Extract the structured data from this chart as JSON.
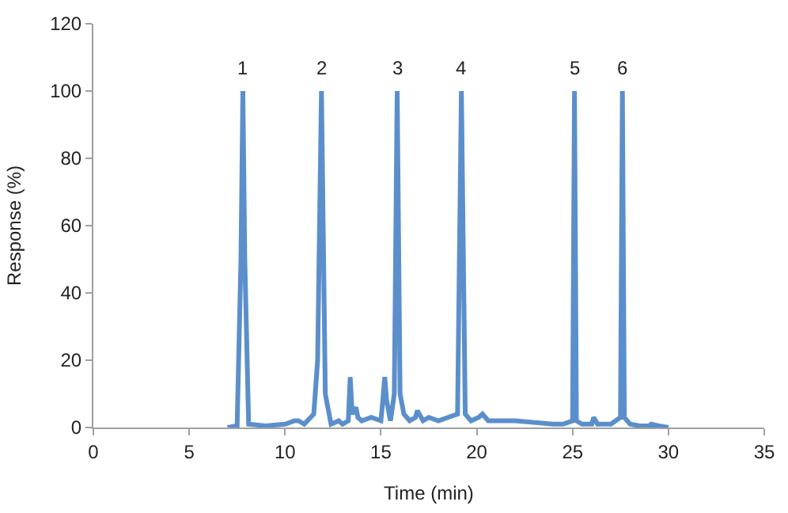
{
  "chart_data": {
    "type": "line",
    "xlabel": "Time (min)",
    "ylabel": "Response (%)",
    "x": [
      7,
      7.5,
      7.7,
      7.8,
      7.9,
      8.1,
      9,
      10,
      10.5,
      10.7,
      11,
      11.5,
      11.7,
      11.9,
      12.1,
      12.4,
      12.8,
      13,
      13.3,
      13.4,
      13.5,
      13.7,
      13.8,
      14,
      14.5,
      15,
      15.1,
      15.2,
      15.3,
      15.5,
      15.7,
      15.85,
      16,
      16.2,
      16.5,
      16.8,
      16.9,
      17.2,
      17.5,
      18,
      18.5,
      19,
      19.2,
      19.4,
      19.7,
      20.1,
      20.3,
      20.6,
      21,
      22,
      23,
      24,
      24.5,
      25,
      25.1,
      25.2,
      25.5,
      26,
      26.1,
      26.3,
      27,
      27.5,
      27.6,
      27.7,
      28,
      28.5,
      29,
      29.1,
      29.5,
      30
    ],
    "series": [
      {
        "color": "#5b8fcb",
        "values": [
          0,
          0.5,
          50,
          100,
          50,
          1,
          0.5,
          1,
          2,
          2,
          1,
          4,
          20,
          100,
          10,
          1,
          2,
          1,
          2,
          15,
          4,
          6,
          3,
          2,
          3,
          2,
          8,
          15,
          8,
          2,
          10,
          100,
          10,
          4,
          2,
          3,
          5,
          2,
          3,
          2,
          3,
          4,
          100,
          4,
          2,
          3,
          4,
          2,
          2,
          2,
          1.5,
          1,
          1,
          2,
          100,
          2,
          1,
          1,
          3,
          1,
          1,
          3,
          100,
          3,
          1,
          0.5,
          0.5,
          1,
          0.5,
          0
        ]
      }
    ],
    "xlim": [
      0,
      35
    ],
    "xticks": [
      0,
      5,
      10,
      15,
      20,
      25,
      30,
      35
    ],
    "ylim": [
      0,
      120
    ],
    "yticks": [
      0,
      20,
      40,
      60,
      80,
      100,
      120
    ],
    "marker": "none",
    "line_style": "solid",
    "annotations": [
      {
        "text": "1",
        "x": 7.8,
        "y": 100
      },
      {
        "text": "2",
        "x": 11.9,
        "y": 100
      },
      {
        "text": "3",
        "x": 15.85,
        "y": 100
      },
      {
        "text": "4",
        "x": 19.2,
        "y": 100
      },
      {
        "text": "5",
        "x": 25.1,
        "y": 100
      },
      {
        "text": "6",
        "x": 27.6,
        "y": 100
      }
    ]
  }
}
